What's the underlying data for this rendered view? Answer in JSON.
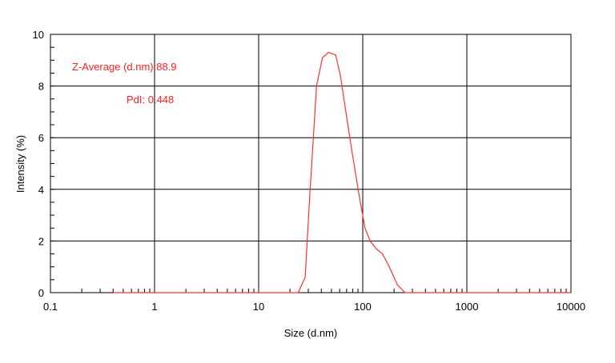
{
  "chart_data": {
    "type": "line",
    "xscale": "log",
    "xlim": [
      0.1,
      10000
    ],
    "ylim": [
      0,
      10
    ],
    "xlabel": "Size (d.nm)",
    "ylabel": "Intensity (%)",
    "grid": true,
    "x_ticks": [
      "0.1",
      "1",
      "10",
      "100",
      "1000",
      "10000"
    ],
    "y_ticks": [
      "0",
      "2",
      "4",
      "6",
      "8",
      "10"
    ],
    "annotations": [
      "Z-Average (d.nm):88.9",
      "PdI: 0.448"
    ],
    "colors": {
      "series": "#ff3030",
      "grid": "#000000",
      "annotation": "#ff2020"
    },
    "series": [
      {
        "x": [
          0.4,
          20,
          24,
          28,
          31,
          36,
          41,
          47,
          55,
          61,
          70,
          80,
          92,
          105,
          118,
          135,
          155,
          180,
          215,
          255,
          10000
        ],
        "values": [
          0,
          0,
          0,
          0.6,
          3.8,
          8.0,
          9.1,
          9.3,
          9.2,
          8.4,
          6.8,
          5.3,
          3.8,
          2.5,
          2.0,
          1.7,
          1.5,
          1.0,
          0.3,
          0,
          0
        ]
      }
    ]
  }
}
